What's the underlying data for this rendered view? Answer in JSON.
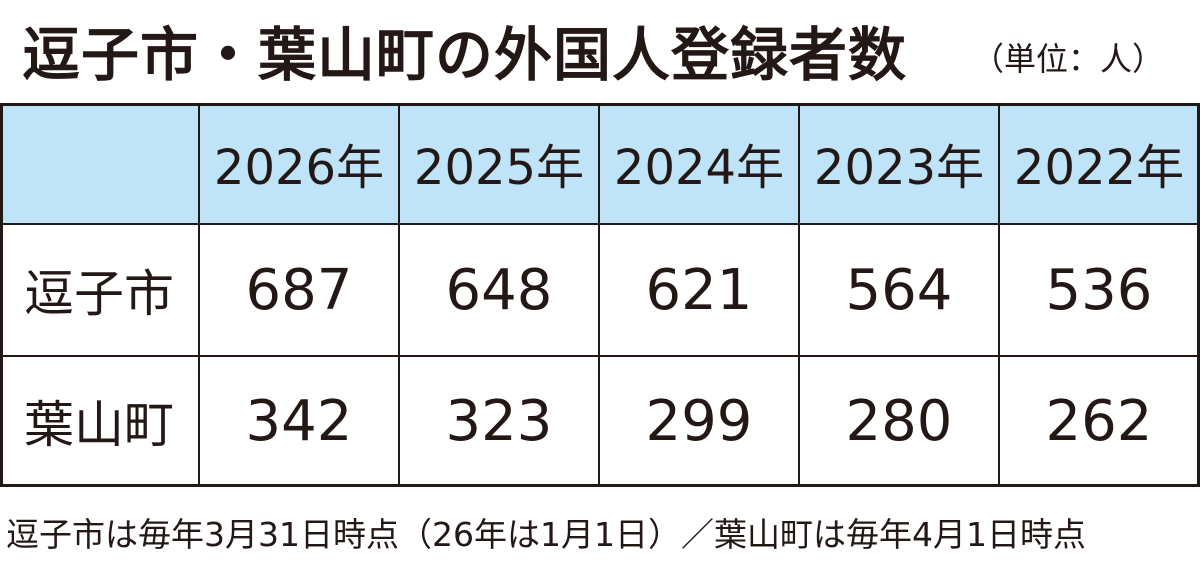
{
  "header": {
    "title": "逗子市・葉山町の外国人登録者数",
    "unit": "（単位：人）"
  },
  "table": {
    "columns": [
      "2026年",
      "2025年",
      "2024年",
      "2023年",
      "2022年"
    ],
    "rows": [
      {
        "label": "逗子市",
        "values": [
          687,
          648,
          621,
          564,
          536
        ]
      },
      {
        "label": "葉山町",
        "values": [
          342,
          323,
          299,
          280,
          262
        ]
      }
    ]
  },
  "footnote": "逗子市は毎年3月31日時点（26年は1月1日）／葉山町は毎年4月1日時点"
}
